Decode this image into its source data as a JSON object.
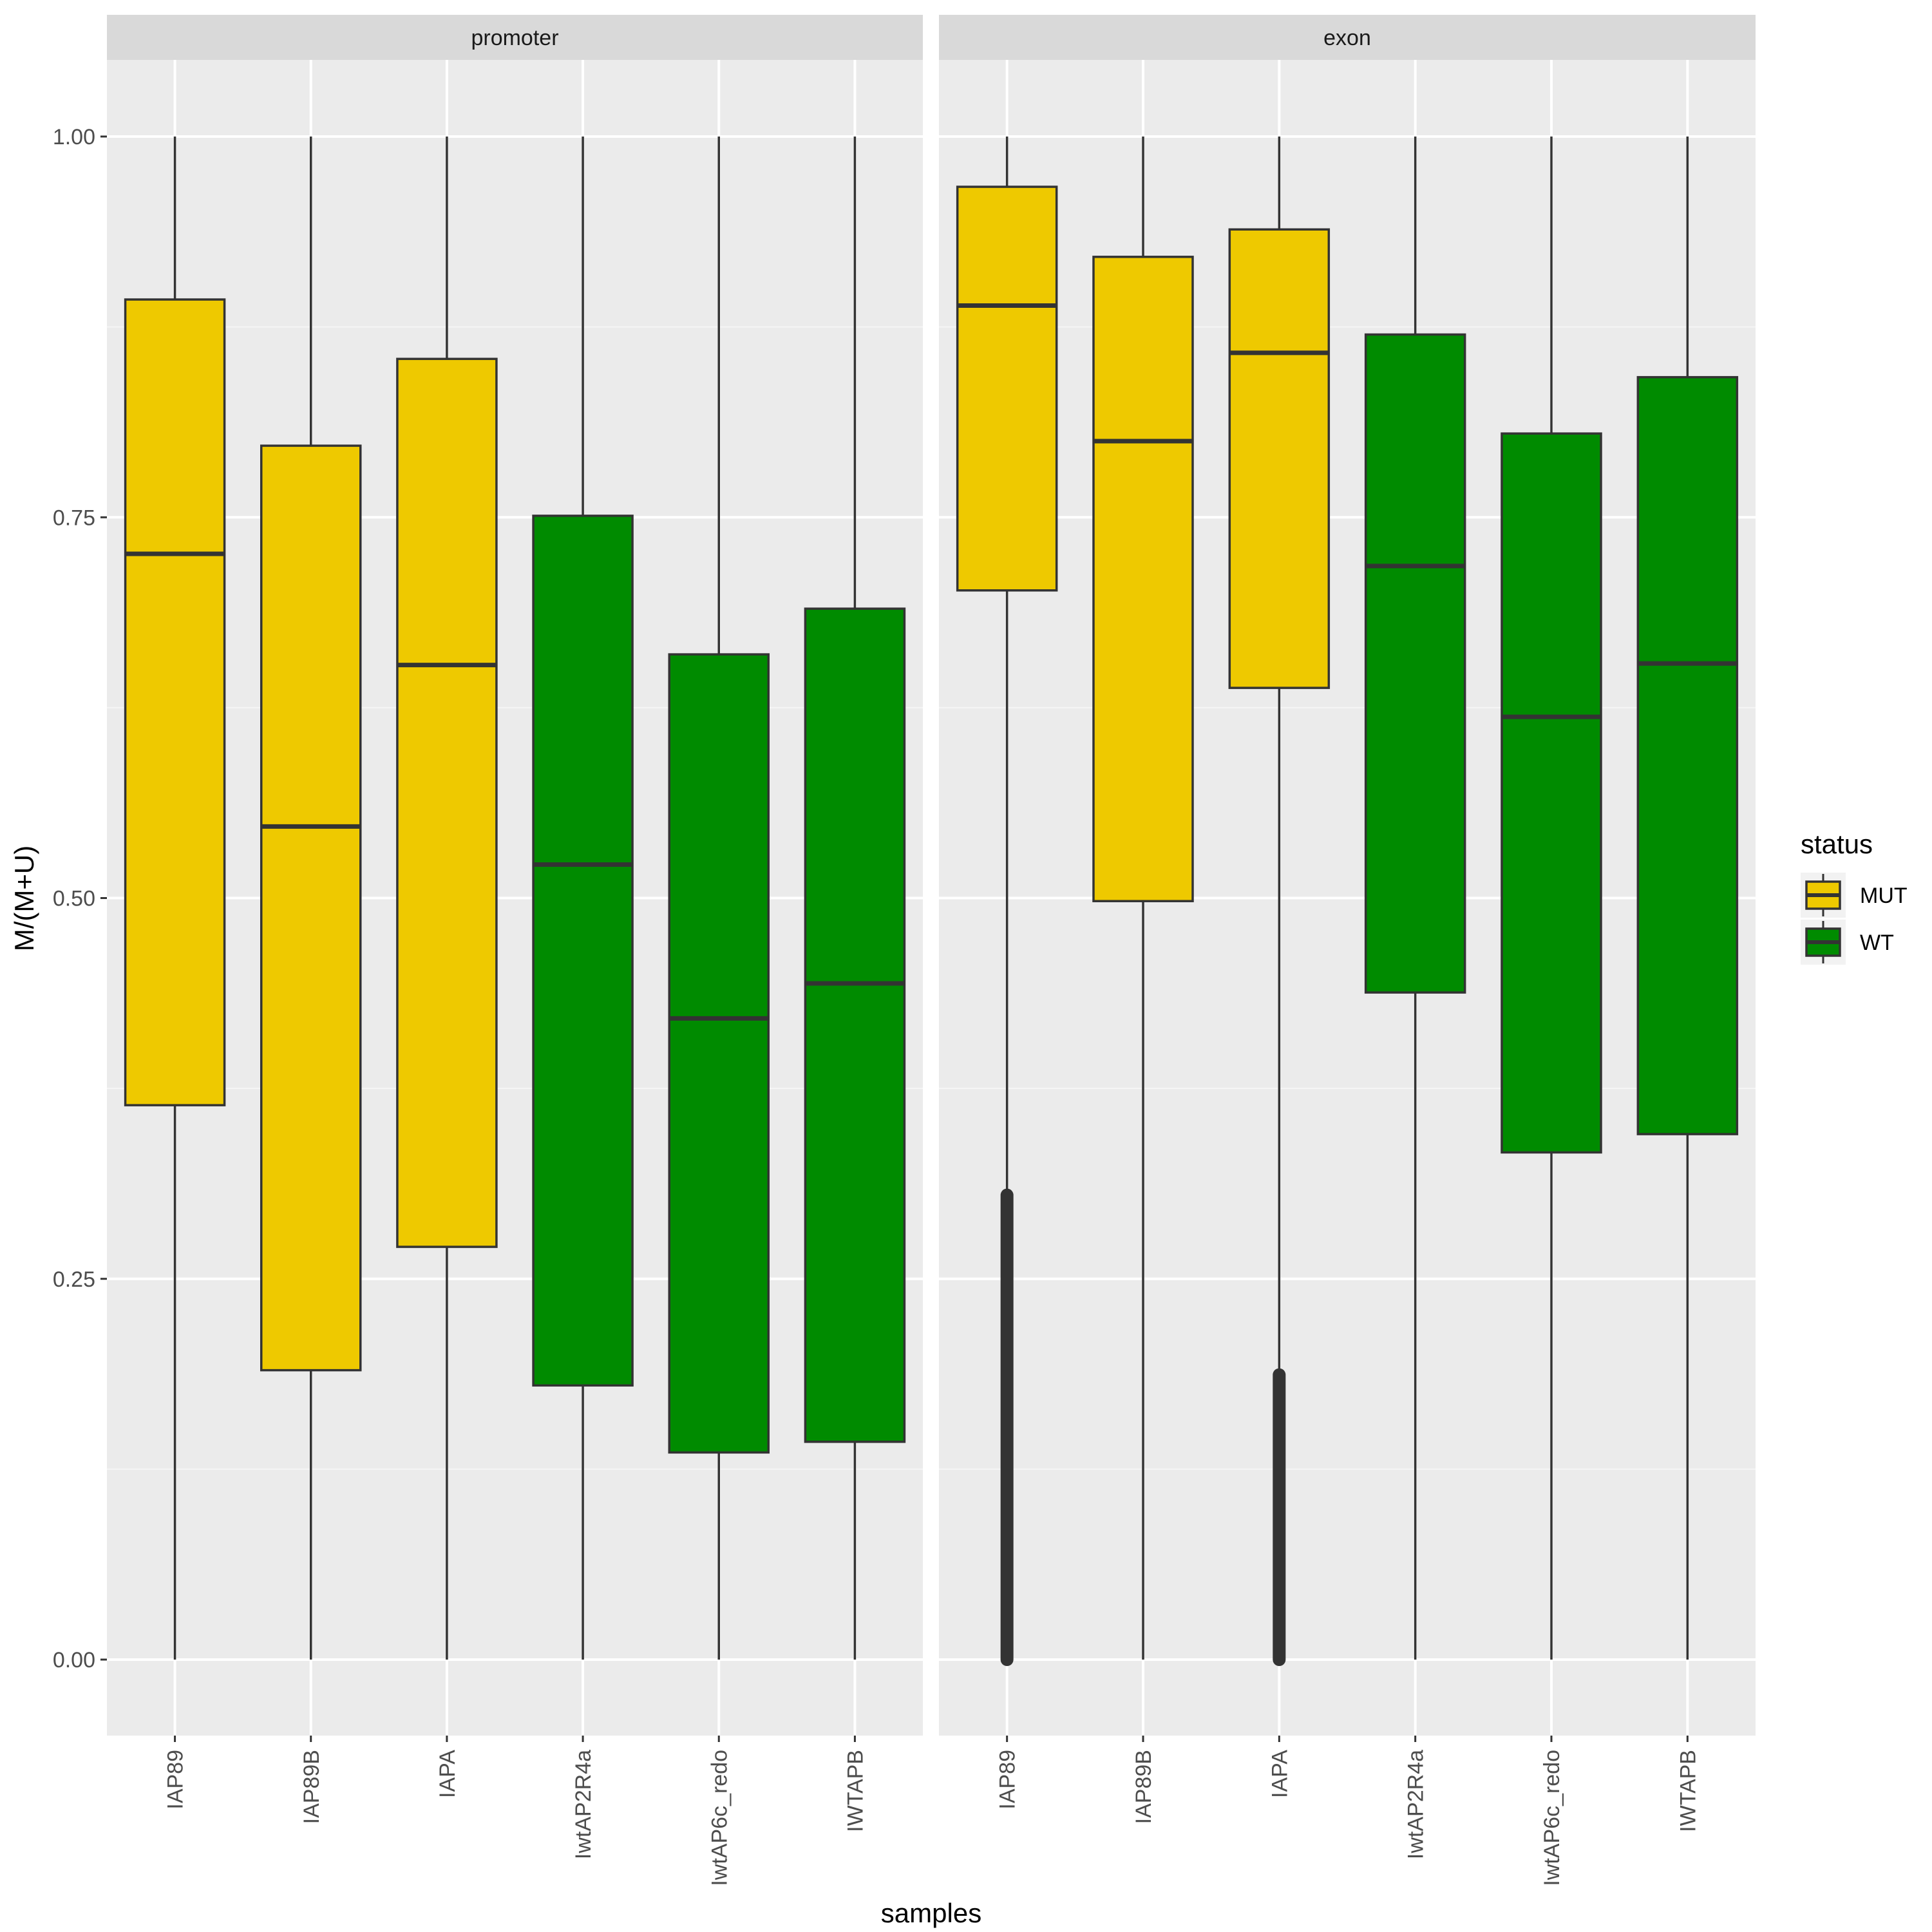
{
  "chart_data": {
    "type": "boxplot",
    "ylabel": "M/(M+U)",
    "xlabel": "samples",
    "ylim": [
      -0.05,
      1.05
    ],
    "yticks": [
      0.0,
      0.25,
      0.5,
      0.75,
      1.0
    ],
    "ytick_labels": [
      "0.00",
      "0.25",
      "0.50",
      "0.75",
      "1.00"
    ],
    "categories": [
      "IAP89",
      "IAP89B",
      "IAPA",
      "IwtAP2R4a",
      "IwtAP6c_redo",
      "IWTAPB"
    ],
    "grid": true,
    "legend": {
      "title": "status",
      "position": "right",
      "entries": [
        {
          "label": "MUT",
          "color": "#EEC900"
        },
        {
          "label": "WT",
          "color": "#008B00"
        }
      ]
    },
    "colors": {
      "MUT": "#EEC900",
      "WT": "#008B00"
    },
    "panels": [
      {
        "name": "promoter",
        "boxes": [
          {
            "sample": "IAP89",
            "status": "MUT",
            "min": 0.0,
            "q1": 0.364,
            "median": 0.726,
            "q3": 0.893,
            "max": 1.0,
            "outliers": null
          },
          {
            "sample": "IAP89B",
            "status": "MUT",
            "min": 0.0,
            "q1": 0.19,
            "median": 0.547,
            "q3": 0.797,
            "max": 1.0,
            "outliers": null
          },
          {
            "sample": "IAPA",
            "status": "MUT",
            "min": 0.0,
            "q1": 0.271,
            "median": 0.653,
            "q3": 0.854,
            "max": 1.0,
            "outliers": null
          },
          {
            "sample": "IwtAP2R4a",
            "status": "WT",
            "min": 0.0,
            "q1": 0.18,
            "median": 0.522,
            "q3": 0.751,
            "max": 1.0,
            "outliers": null
          },
          {
            "sample": "IwtAP6c_redo",
            "status": "WT",
            "min": 0.0,
            "q1": 0.136,
            "median": 0.421,
            "q3": 0.66,
            "max": 1.0,
            "outliers": null
          },
          {
            "sample": "IWTAPB",
            "status": "WT",
            "min": 0.0,
            "q1": 0.143,
            "median": 0.444,
            "q3": 0.69,
            "max": 1.0,
            "outliers": null
          }
        ]
      },
      {
        "name": "exon",
        "boxes": [
          {
            "sample": "IAP89",
            "status": "MUT",
            "min": 0.0,
            "q1": 0.702,
            "median": 0.889,
            "q3": 0.967,
            "max": 1.0,
            "outliers": [
              0.0,
              0.305
            ]
          },
          {
            "sample": "IAP89B",
            "status": "MUT",
            "min": 0.0,
            "q1": 0.498,
            "median": 0.8,
            "q3": 0.921,
            "max": 1.0,
            "outliers": null
          },
          {
            "sample": "IAPA",
            "status": "MUT",
            "min": 0.0,
            "q1": 0.638,
            "median": 0.858,
            "q3": 0.939,
            "max": 1.0,
            "outliers": [
              0.0,
              0.187
            ]
          },
          {
            "sample": "IwtAP2R4a",
            "status": "WT",
            "min": 0.0,
            "q1": 0.438,
            "median": 0.718,
            "q3": 0.87,
            "max": 1.0,
            "outliers": null
          },
          {
            "sample": "IwtAP6c_redo",
            "status": "WT",
            "min": 0.0,
            "q1": 0.333,
            "median": 0.619,
            "q3": 0.805,
            "max": 1.0,
            "outliers": null
          },
          {
            "sample": "IWTAPB",
            "status": "WT",
            "min": 0.0,
            "q1": 0.345,
            "median": 0.654,
            "q3": 0.842,
            "max": 1.0,
            "outliers": null
          }
        ]
      }
    ]
  }
}
